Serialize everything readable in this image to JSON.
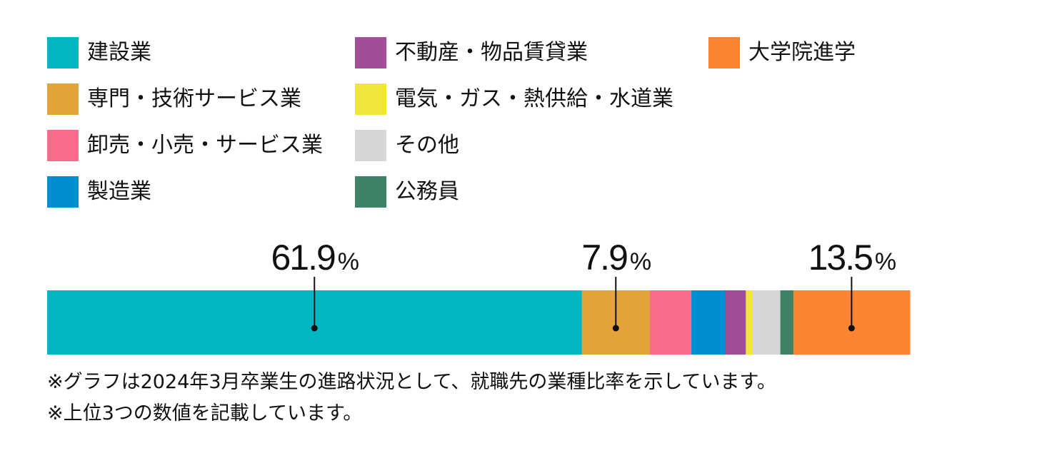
{
  "chart_data": {
    "type": "bar",
    "orientation": "horizontal-stacked",
    "unit": "%",
    "series": [
      {
        "name": "建設業",
        "value": 61.9,
        "color": "#00B6C3"
      },
      {
        "name": "専門・技術サービス業",
        "value": 7.9,
        "color": "#E3A23A"
      },
      {
        "name": "卸売・小売・サービス業",
        "value": 4.8,
        "color": "#F86E8A"
      },
      {
        "name": "製造業",
        "value": 3.9,
        "color": "#008ED3"
      },
      {
        "name": "不動産・物品賃貸業",
        "value": 2.4,
        "color": "#A24D97"
      },
      {
        "name": "電気・ガス・熱供給・水道業",
        "value": 0.8,
        "color": "#F1E53C"
      },
      {
        "name": "その他",
        "value": 3.2,
        "color": "#D6D6D6"
      },
      {
        "name": "公務員",
        "value": 1.5,
        "color": "#3E8366"
      },
      {
        "name": "大学院進学",
        "value": 13.5,
        "color": "#FB8433"
      }
    ],
    "labeled": [
      {
        "index": 0,
        "text": "61.9"
      },
      {
        "index": 1,
        "text": "7.9"
      },
      {
        "index": 8,
        "text": "13.5"
      }
    ],
    "percent_symbol": "%",
    "legend_position": "top",
    "legend_columns": [
      [
        0,
        1,
        2,
        3
      ],
      [
        4,
        5,
        6,
        7
      ],
      [
        8
      ]
    ]
  },
  "notes": [
    "※グラフは2024年3月卒業生の進路状況として、就職先の業種比率を示しています。",
    "※上位3つの数値を記載しています。"
  ]
}
